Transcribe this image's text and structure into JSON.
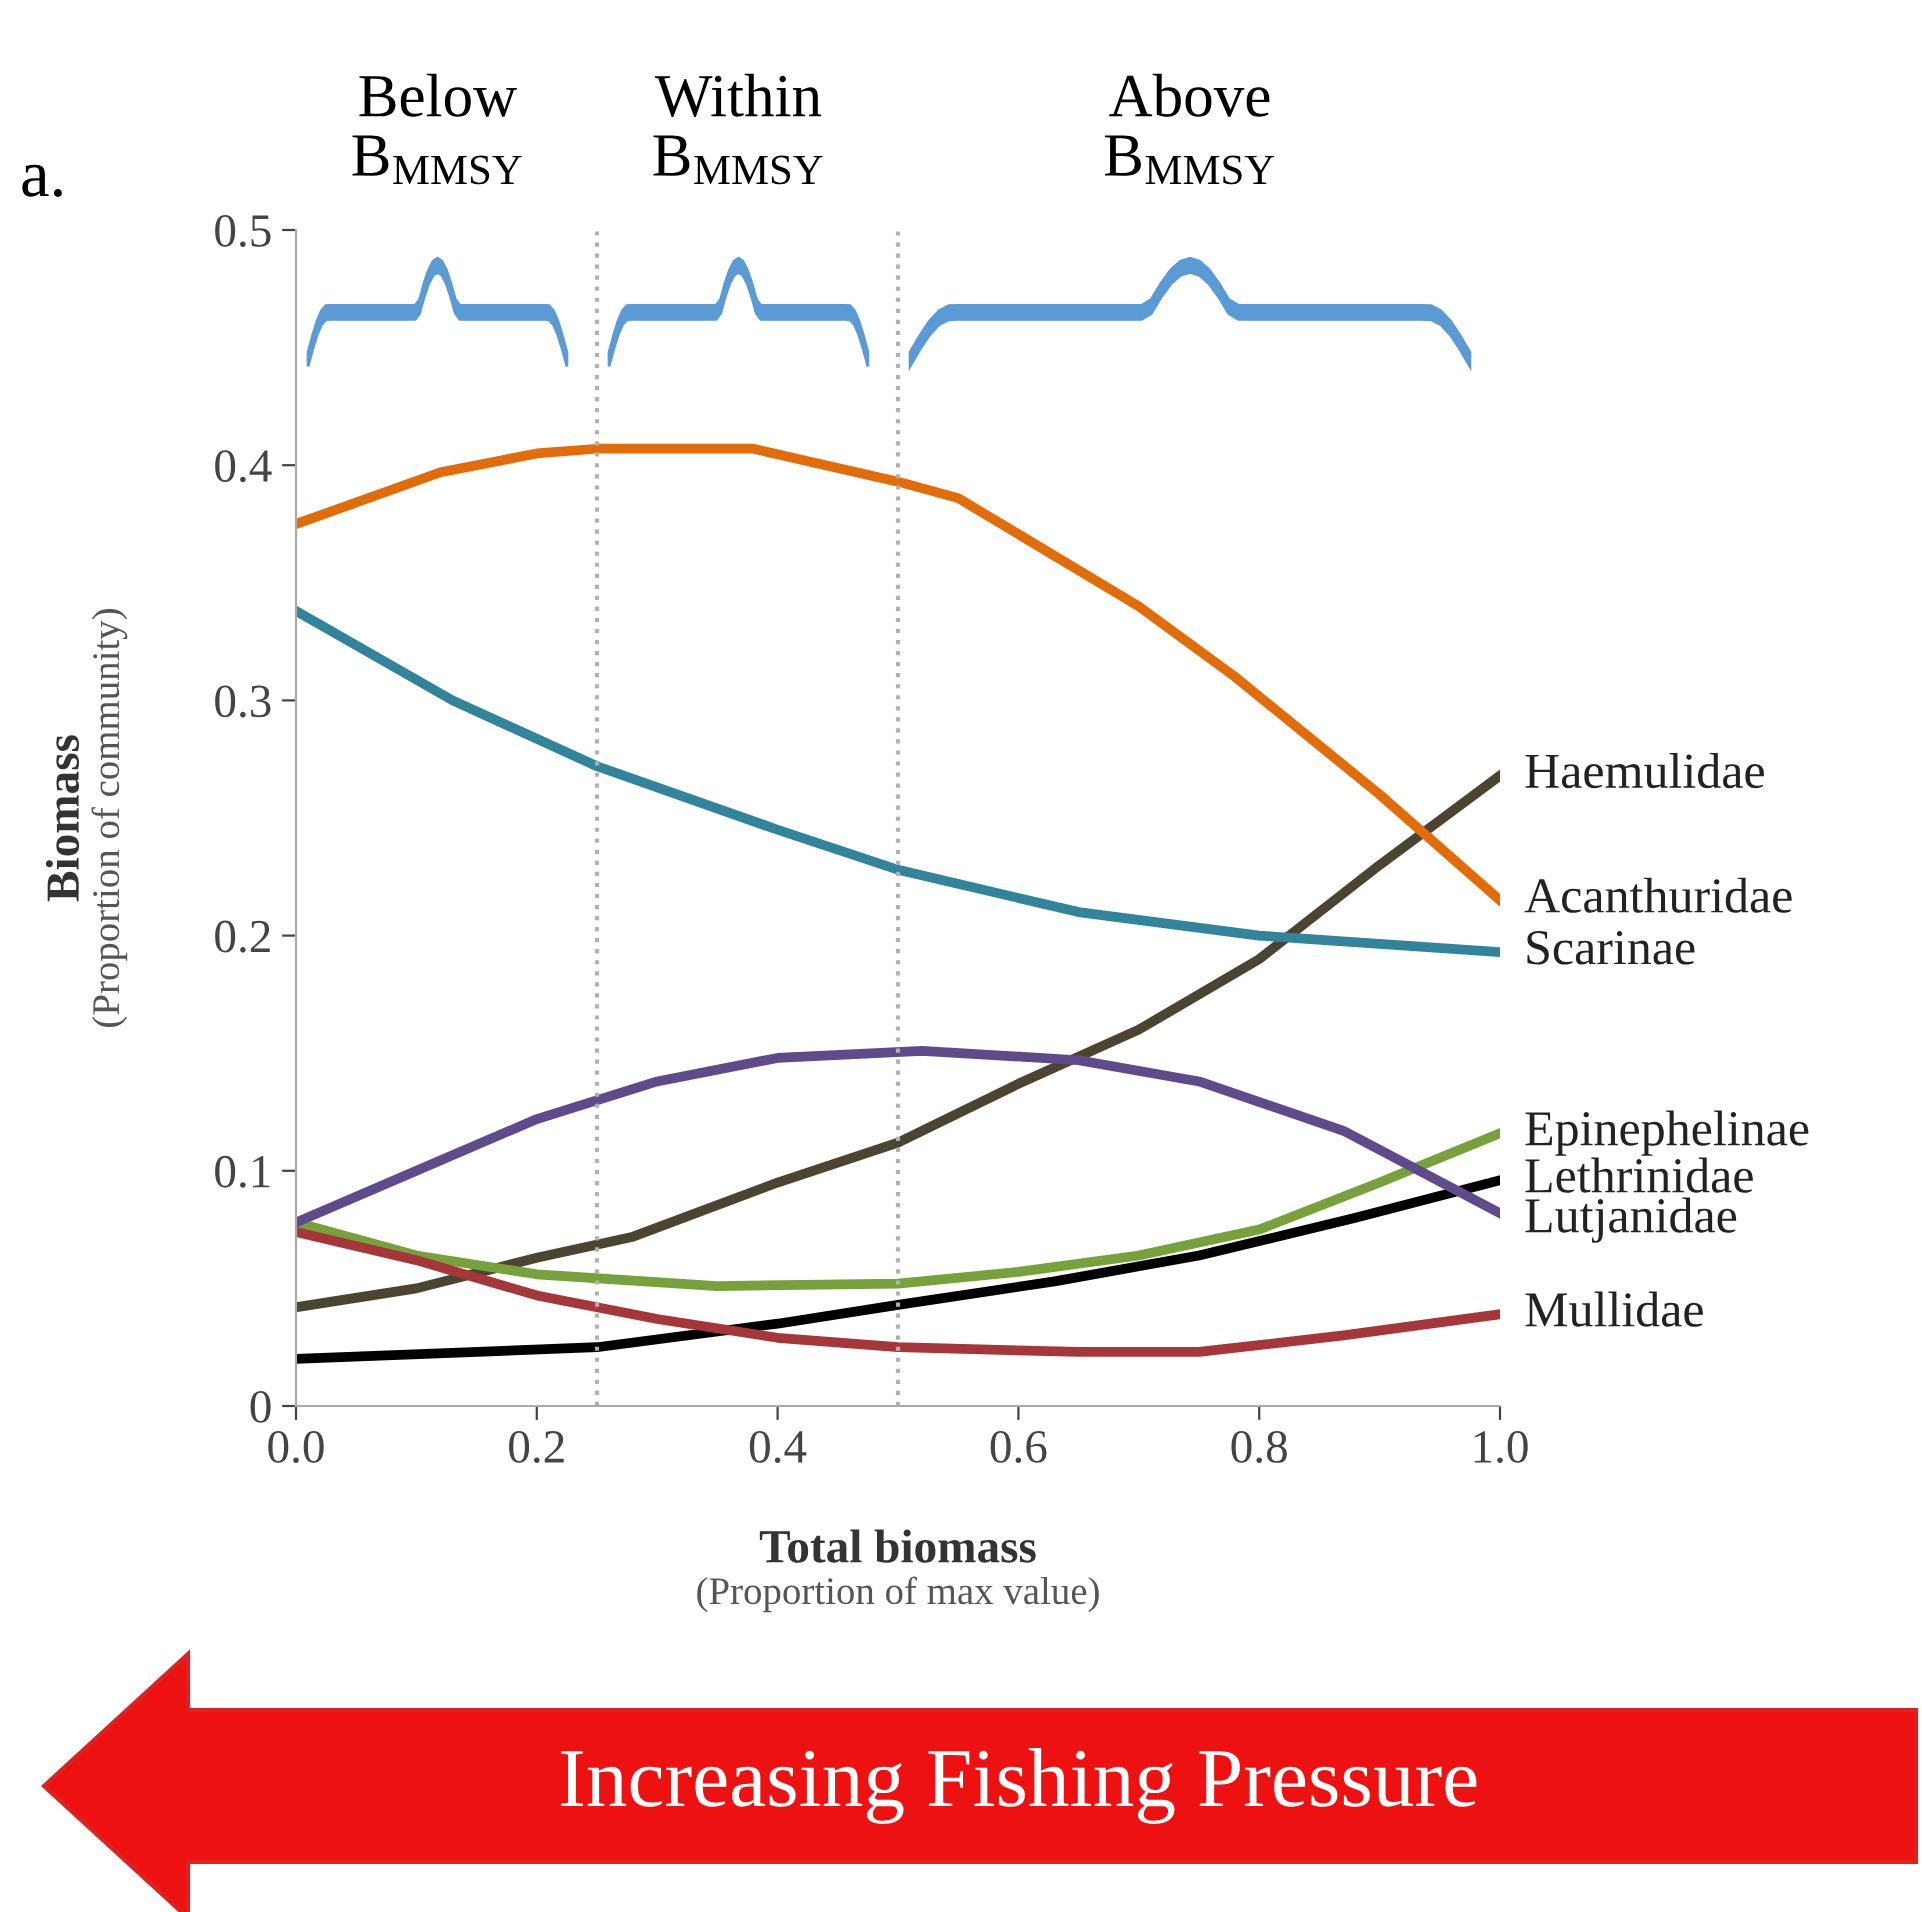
{
  "chart_data": {
    "type": "line",
    "xlabel": "Total biomass\n(Proportion of max value)",
    "ylabel": "Biomass\n(Proportion of community)",
    "xlim": [
      0,
      1
    ],
    "ylim": [
      0,
      0.5
    ],
    "xticks": [
      {
        "value": 0,
        "label": "0.0"
      },
      {
        "value": 0.2,
        "label": "0.2"
      },
      {
        "value": 0.4,
        "label": "0.4"
      },
      {
        "value": 0.6,
        "label": "0.6"
      },
      {
        "value": 0.8,
        "label": "0.8"
      },
      {
        "value": 1,
        "label": "1.0"
      }
    ],
    "yticks": [
      0,
      0.1,
      0.2,
      0.3,
      0.4,
      0.5
    ],
    "grid": false,
    "legend": false,
    "marker": "none",
    "line_style": "solid",
    "series": [
      {
        "name": "Haemulidae",
        "color": "#4a4431",
        "x": [
          0,
          0.1,
          0.2,
          0.28,
          0.4,
          0.5,
          0.6,
          0.7,
          0.8,
          0.9,
          1.0
        ],
        "values": [
          0.042,
          0.05,
          0.063,
          0.072,
          0.095,
          0.112,
          0.137,
          0.16,
          0.19,
          0.23,
          0.268
        ]
      },
      {
        "name": "Acanthuridae",
        "color": "#e36c0a",
        "x": [
          0,
          0.12,
          0.2,
          0.25,
          0.38,
          0.5,
          0.55,
          0.7,
          0.78,
          0.9,
          1.0
        ],
        "values": [
          0.375,
          0.397,
          0.405,
          0.407,
          0.407,
          0.393,
          0.386,
          0.34,
          0.31,
          0.26,
          0.215
        ]
      },
      {
        "name": "Scarinae",
        "color": "#31849b",
        "x": [
          0,
          0.13,
          0.25,
          0.4,
          0.5,
          0.65,
          0.8,
          1.0
        ],
        "values": [
          0.338,
          0.3,
          0.272,
          0.245,
          0.228,
          0.21,
          0.2,
          0.193
        ]
      },
      {
        "name": "Epinephelinae",
        "color": "#77a13a",
        "x": [
          0,
          0.1,
          0.2,
          0.35,
          0.5,
          0.6,
          0.7,
          0.8,
          0.9,
          1.0
        ],
        "values": [
          0.078,
          0.064,
          0.056,
          0.051,
          0.052,
          0.057,
          0.064,
          0.075,
          0.095,
          0.116
        ]
      },
      {
        "name": "Lethrinidae",
        "color": "#000000",
        "x": [
          0,
          0.25,
          0.4,
          0.5,
          0.63,
          0.75,
          0.88,
          1.0
        ],
        "values": [
          0.02,
          0.025,
          0.035,
          0.043,
          0.053,
          0.064,
          0.08,
          0.096
        ]
      },
      {
        "name": "Lutjanidae",
        "color": "#5f4b8b",
        "x": [
          0,
          0.1,
          0.2,
          0.3,
          0.4,
          0.52,
          0.65,
          0.75,
          0.87,
          1.0
        ],
        "values": [
          0.078,
          0.1,
          0.122,
          0.138,
          0.148,
          0.151,
          0.147,
          0.138,
          0.117,
          0.082
        ]
      },
      {
        "name": "Mullidae",
        "color": "#a5373a",
        "x": [
          0,
          0.1,
          0.2,
          0.3,
          0.4,
          0.5,
          0.65,
          0.75,
          0.87,
          1.0
        ],
        "values": [
          0.074,
          0.062,
          0.047,
          0.037,
          0.029,
          0.025,
          0.023,
          0.023,
          0.03,
          0.039
        ]
      }
    ],
    "ref_lines": [
      {
        "axis": "x",
        "value": 0.25,
        "color": "#b0b0b0",
        "line_style": "dotted"
      },
      {
        "axis": "x",
        "value": 0.5,
        "color": "#b0b0b0",
        "line_style": "dotted"
      }
    ],
    "annotations": [
      "a.",
      "Increasing Fishing Pressure",
      "Below\nB$_{MMSY}$",
      "Within\nB$_{MMSY}$",
      "Above\nB$_{MMSY}$"
    ]
  }
}
